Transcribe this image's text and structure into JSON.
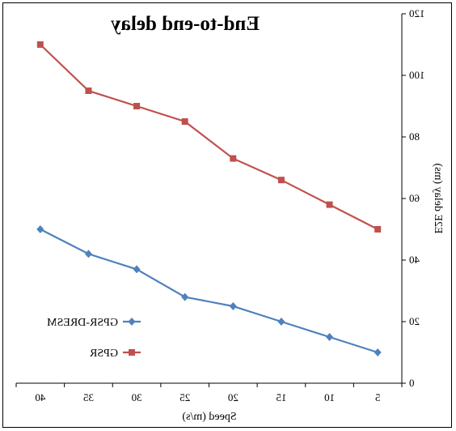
{
  "chart_data": {
    "type": "line",
    "title": "End-to-end delay",
    "xlabel": "Speed (m/s)",
    "ylabel": "E2E delay (ms)",
    "x": [
      5,
      10,
      15,
      20,
      25,
      30,
      35,
      40
    ],
    "x_tick_labels": [
      "5",
      "10",
      "15",
      "20",
      "25",
      "30",
      "35",
      "40"
    ],
    "ylim": [
      0,
      120
    ],
    "y_ticks": [
      0,
      20,
      40,
      60,
      80,
      100,
      120
    ],
    "y_tick_labels": [
      "0",
      "20",
      "40",
      "60",
      "80",
      "100",
      "120"
    ],
    "grid": false,
    "legend_position": "bottom-left",
    "mirrored": true,
    "series": [
      {
        "name": "GPSR-DRESM",
        "color": "#4f81bd",
        "marker": "diamond",
        "values": [
          10,
          15,
          20,
          25,
          28,
          37,
          42,
          50
        ]
      },
      {
        "name": "GPSR",
        "color": "#c0504d",
        "marker": "square",
        "values": [
          50,
          58,
          66,
          73,
          85,
          90,
          95,
          110
        ]
      }
    ]
  }
}
